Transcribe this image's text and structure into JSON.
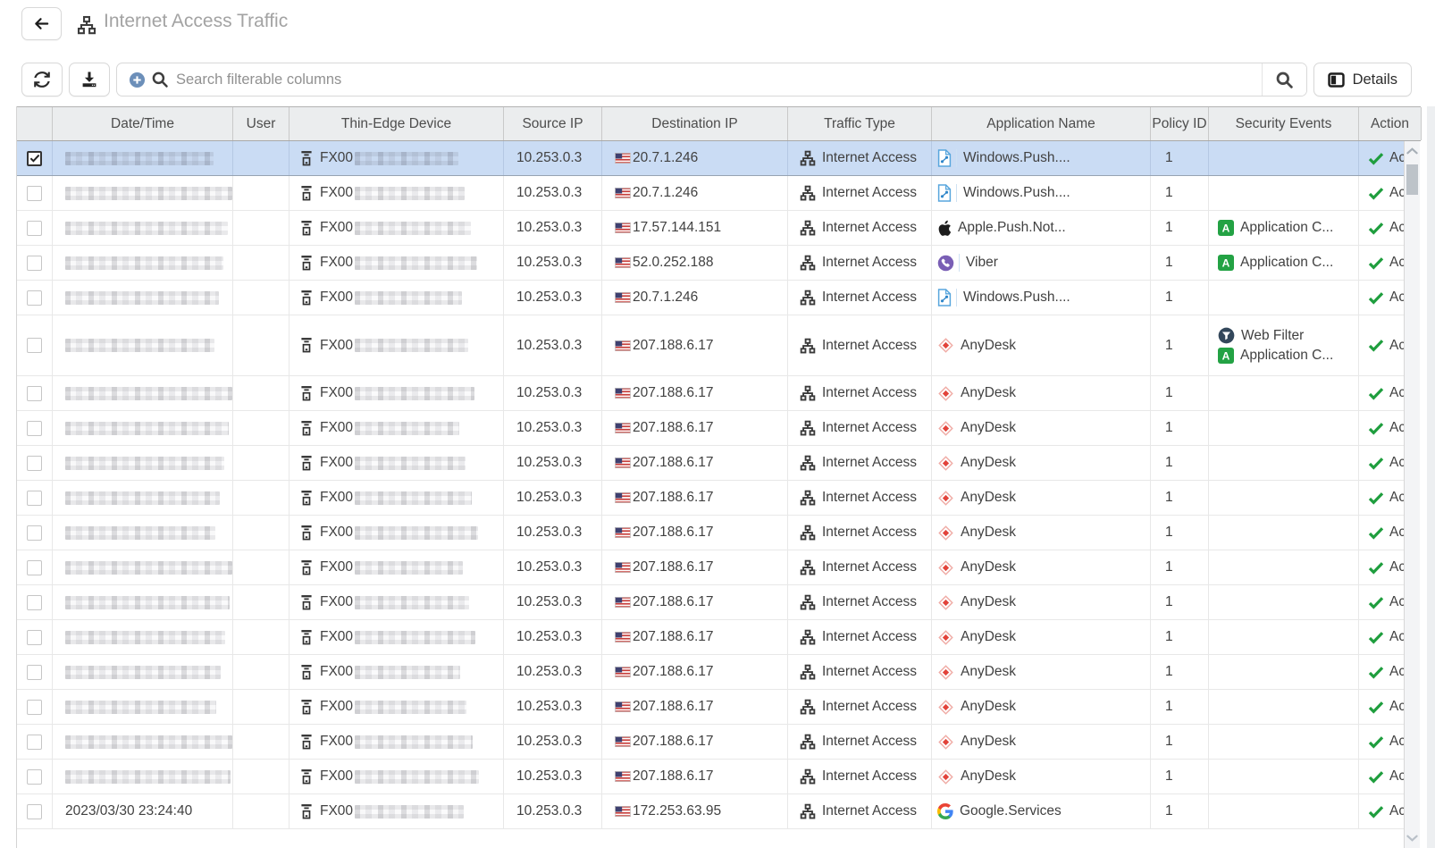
{
  "header": {
    "title": "Internet Access Traffic"
  },
  "toolbar": {
    "search_placeholder": "Search filterable columns",
    "details_label": "Details"
  },
  "colors": {
    "selected_row": "#cadcf4",
    "success_green": "#1f9e3e",
    "app_control_green": "#23a244",
    "web_filter_navy": "#33475b",
    "anydesk_red": "#e2433a",
    "viber_purple": "#7a5fb5",
    "windows_blue": "#58a6dd",
    "header_bg": "#ebedee"
  },
  "table": {
    "columns": [
      {
        "key": "select",
        "label": ""
      },
      {
        "key": "datetime",
        "label": "Date/Time"
      },
      {
        "key": "user",
        "label": "User"
      },
      {
        "key": "device",
        "label": "Thin-Edge Device"
      },
      {
        "key": "source-ip",
        "label": "Source IP"
      },
      {
        "key": "dest-ip",
        "label": "Destination IP"
      },
      {
        "key": "traffic-type",
        "label": "Traffic Type"
      },
      {
        "key": "application-name",
        "label": "Application Name"
      },
      {
        "key": "policy-id",
        "label": "Policy ID"
      },
      {
        "key": "security-events",
        "label": "Security Events"
      },
      {
        "key": "action",
        "label": "Action"
      }
    ],
    "rows": [
      {
        "selected": true,
        "checked": true,
        "datetime": "",
        "datetime_masked": true,
        "user": "",
        "device_prefix": "FX00",
        "device_masked": true,
        "source_ip": "10.253.0.3",
        "dest_flag": "us-flag-icon",
        "dest_ip": "20.7.1.246",
        "traffic_type": "Internet Access",
        "app": {
          "icon": "windows-push-icon",
          "name": "Windows.Push...."
        },
        "policy_id": "1",
        "security_events": [],
        "action": {
          "icon": "check-icon",
          "label": "Accept"
        }
      },
      {
        "selected": false,
        "checked": false,
        "datetime": "",
        "datetime_masked": true,
        "user": "",
        "device_prefix": "FX00",
        "device_masked": true,
        "source_ip": "10.253.0.3",
        "dest_flag": "us-flag-icon",
        "dest_ip": "20.7.1.246",
        "traffic_type": "Internet Access",
        "app": {
          "icon": "windows-push-icon",
          "name": "Windows.Push...."
        },
        "policy_id": "1",
        "security_events": [],
        "action": {
          "icon": "check-icon",
          "label": "Accept"
        }
      },
      {
        "selected": false,
        "checked": false,
        "datetime": "",
        "datetime_masked": true,
        "user": "",
        "device_prefix": "FX00",
        "device_masked": true,
        "source_ip": "10.253.0.3",
        "dest_flag": "us-flag-icon",
        "dest_ip": "17.57.144.151",
        "traffic_type": "Internet Access",
        "app": {
          "icon": "apple-icon",
          "name": "Apple.Push.Not..."
        },
        "policy_id": "1",
        "security_events": [
          {
            "icon": "application-control-icon",
            "label": "Application C..."
          }
        ],
        "action": {
          "icon": "check-icon",
          "label": "Accept"
        }
      },
      {
        "selected": false,
        "checked": false,
        "datetime": "",
        "datetime_masked": true,
        "user": "",
        "device_prefix": "FX00",
        "device_masked": true,
        "source_ip": "10.253.0.3",
        "dest_flag": "us-flag-icon",
        "dest_ip": "52.0.252.188",
        "traffic_type": "Internet Access",
        "app": {
          "icon": "viber-icon",
          "name": "Viber"
        },
        "policy_id": "1",
        "security_events": [
          {
            "icon": "application-control-icon",
            "label": "Application C..."
          }
        ],
        "action": {
          "icon": "check-icon",
          "label": "Accept"
        }
      },
      {
        "selected": false,
        "checked": false,
        "datetime": "",
        "datetime_masked": true,
        "user": "",
        "device_prefix": "FX00",
        "device_masked": true,
        "source_ip": "10.253.0.3",
        "dest_flag": "us-flag-icon",
        "dest_ip": "20.7.1.246",
        "traffic_type": "Internet Access",
        "app": {
          "icon": "windows-push-icon",
          "name": "Windows.Push...."
        },
        "policy_id": "1",
        "security_events": [],
        "action": {
          "icon": "check-icon",
          "label": "Accept"
        }
      },
      {
        "selected": false,
        "checked": false,
        "datetime": "",
        "datetime_masked": true,
        "user": "",
        "device_prefix": "FX00",
        "device_masked": true,
        "source_ip": "10.253.0.3",
        "dest_flag": "us-flag-icon",
        "dest_ip": "207.188.6.17",
        "traffic_type": "Internet Access",
        "app": {
          "icon": "anydesk-icon",
          "name": "AnyDesk"
        },
        "policy_id": "1",
        "security_events": [
          {
            "icon": "web-filter-icon",
            "label": "Web Filter"
          },
          {
            "icon": "application-control-icon",
            "label": "Application C..."
          }
        ],
        "action": {
          "icon": "check-icon",
          "label": "Accept"
        }
      },
      {
        "selected": false,
        "checked": false,
        "datetime": "",
        "datetime_masked": true,
        "user": "",
        "device_prefix": "FX00",
        "device_masked": true,
        "source_ip": "10.253.0.3",
        "dest_flag": "us-flag-icon",
        "dest_ip": "207.188.6.17",
        "traffic_type": "Internet Access",
        "app": {
          "icon": "anydesk-icon",
          "name": "AnyDesk"
        },
        "policy_id": "1",
        "security_events": [],
        "action": {
          "icon": "check-icon",
          "label": "Accept"
        }
      },
      {
        "selected": false,
        "checked": false,
        "datetime": "",
        "datetime_masked": true,
        "user": "",
        "device_prefix": "FX00",
        "device_masked": true,
        "source_ip": "10.253.0.3",
        "dest_flag": "us-flag-icon",
        "dest_ip": "207.188.6.17",
        "traffic_type": "Internet Access",
        "app": {
          "icon": "anydesk-icon",
          "name": "AnyDesk"
        },
        "policy_id": "1",
        "security_events": [],
        "action": {
          "icon": "check-icon",
          "label": "Accept"
        }
      },
      {
        "selected": false,
        "checked": false,
        "datetime": "",
        "datetime_masked": true,
        "user": "",
        "device_prefix": "FX00",
        "device_masked": true,
        "source_ip": "10.253.0.3",
        "dest_flag": "us-flag-icon",
        "dest_ip": "207.188.6.17",
        "traffic_type": "Internet Access",
        "app": {
          "icon": "anydesk-icon",
          "name": "AnyDesk"
        },
        "policy_id": "1",
        "security_events": [],
        "action": {
          "icon": "check-icon",
          "label": "Accept"
        }
      },
      {
        "selected": false,
        "checked": false,
        "datetime": "",
        "datetime_masked": true,
        "user": "",
        "device_prefix": "FX00",
        "device_masked": true,
        "source_ip": "10.253.0.3",
        "dest_flag": "us-flag-icon",
        "dest_ip": "207.188.6.17",
        "traffic_type": "Internet Access",
        "app": {
          "icon": "anydesk-icon",
          "name": "AnyDesk"
        },
        "policy_id": "1",
        "security_events": [],
        "action": {
          "icon": "check-icon",
          "label": "Accept"
        }
      },
      {
        "selected": false,
        "checked": false,
        "datetime": "",
        "datetime_masked": true,
        "user": "",
        "device_prefix": "FX00",
        "device_masked": true,
        "source_ip": "10.253.0.3",
        "dest_flag": "us-flag-icon",
        "dest_ip": "207.188.6.17",
        "traffic_type": "Internet Access",
        "app": {
          "icon": "anydesk-icon",
          "name": "AnyDesk"
        },
        "policy_id": "1",
        "security_events": [],
        "action": {
          "icon": "check-icon",
          "label": "Accept"
        }
      },
      {
        "selected": false,
        "checked": false,
        "datetime": "",
        "datetime_masked": true,
        "user": "",
        "device_prefix": "FX00",
        "device_masked": true,
        "source_ip": "10.253.0.3",
        "dest_flag": "us-flag-icon",
        "dest_ip": "207.188.6.17",
        "traffic_type": "Internet Access",
        "app": {
          "icon": "anydesk-icon",
          "name": "AnyDesk"
        },
        "policy_id": "1",
        "security_events": [],
        "action": {
          "icon": "check-icon",
          "label": "Accept"
        }
      },
      {
        "selected": false,
        "checked": false,
        "datetime": "",
        "datetime_masked": true,
        "user": "",
        "device_prefix": "FX00",
        "device_masked": true,
        "source_ip": "10.253.0.3",
        "dest_flag": "us-flag-icon",
        "dest_ip": "207.188.6.17",
        "traffic_type": "Internet Access",
        "app": {
          "icon": "anydesk-icon",
          "name": "AnyDesk"
        },
        "policy_id": "1",
        "security_events": [],
        "action": {
          "icon": "check-icon",
          "label": "Accept"
        }
      },
      {
        "selected": false,
        "checked": false,
        "datetime": "",
        "datetime_masked": true,
        "user": "",
        "device_prefix": "FX00",
        "device_masked": true,
        "source_ip": "10.253.0.3",
        "dest_flag": "us-flag-icon",
        "dest_ip": "207.188.6.17",
        "traffic_type": "Internet Access",
        "app": {
          "icon": "anydesk-icon",
          "name": "AnyDesk"
        },
        "policy_id": "1",
        "security_events": [],
        "action": {
          "icon": "check-icon",
          "label": "Accept"
        }
      },
      {
        "selected": false,
        "checked": false,
        "datetime": "",
        "datetime_masked": true,
        "user": "",
        "device_prefix": "FX00",
        "device_masked": true,
        "source_ip": "10.253.0.3",
        "dest_flag": "us-flag-icon",
        "dest_ip": "207.188.6.17",
        "traffic_type": "Internet Access",
        "app": {
          "icon": "anydesk-icon",
          "name": "AnyDesk"
        },
        "policy_id": "1",
        "security_events": [],
        "action": {
          "icon": "check-icon",
          "label": "Accept"
        }
      },
      {
        "selected": false,
        "checked": false,
        "datetime": "",
        "datetime_masked": true,
        "user": "",
        "device_prefix": "FX00",
        "device_masked": true,
        "source_ip": "10.253.0.3",
        "dest_flag": "us-flag-icon",
        "dest_ip": "207.188.6.17",
        "traffic_type": "Internet Access",
        "app": {
          "icon": "anydesk-icon",
          "name": "AnyDesk"
        },
        "policy_id": "1",
        "security_events": [],
        "action": {
          "icon": "check-icon",
          "label": "Accept"
        }
      },
      {
        "selected": false,
        "checked": false,
        "datetime": "",
        "datetime_masked": true,
        "user": "",
        "device_prefix": "FX00",
        "device_masked": true,
        "source_ip": "10.253.0.3",
        "dest_flag": "us-flag-icon",
        "dest_ip": "207.188.6.17",
        "traffic_type": "Internet Access",
        "app": {
          "icon": "anydesk-icon",
          "name": "AnyDesk"
        },
        "policy_id": "1",
        "security_events": [],
        "action": {
          "icon": "check-icon",
          "label": "Accept"
        }
      },
      {
        "selected": false,
        "checked": false,
        "datetime": "",
        "datetime_masked": true,
        "user": "",
        "device_prefix": "FX00",
        "device_masked": true,
        "source_ip": "10.253.0.3",
        "dest_flag": "us-flag-icon",
        "dest_ip": "207.188.6.17",
        "traffic_type": "Internet Access",
        "app": {
          "icon": "anydesk-icon",
          "name": "AnyDesk"
        },
        "policy_id": "1",
        "security_events": [],
        "action": {
          "icon": "check-icon",
          "label": "Accept"
        }
      },
      {
        "selected": false,
        "checked": false,
        "datetime": "2023/03/30 23:24:40",
        "datetime_masked": false,
        "user": "",
        "device_prefix": "FX00",
        "device_masked": true,
        "source_ip": "10.253.0.3",
        "dest_flag": "us-flag-icon",
        "dest_ip": "172.253.63.95",
        "traffic_type": "Internet Access",
        "app": {
          "icon": "google-icon",
          "name": "Google.Services"
        },
        "policy_id": "1",
        "security_events": [],
        "action": {
          "icon": "check-icon",
          "label": "Accept"
        }
      }
    ]
  }
}
